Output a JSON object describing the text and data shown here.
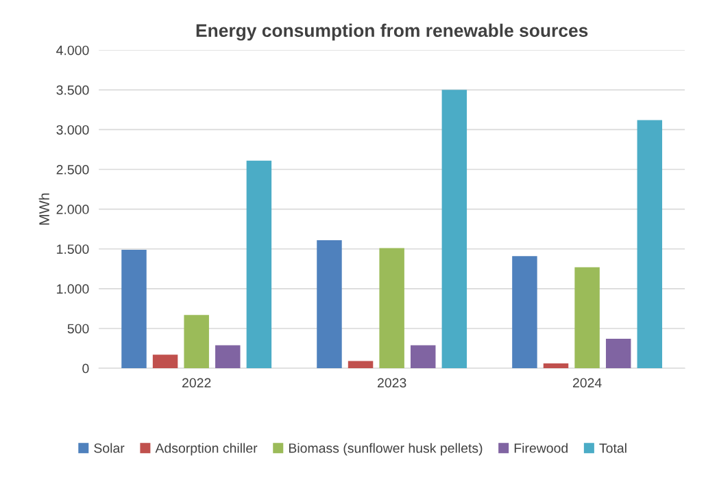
{
  "chart_data": {
    "type": "bar",
    "title": "Energy consumption from renewable sources",
    "ylabel": "MWh",
    "categories": [
      "2022",
      "2023",
      "2024"
    ],
    "series": [
      {
        "name": "Solar",
        "color": "#4f81bd",
        "values": [
          1490,
          1610,
          1410
        ]
      },
      {
        "name": "Adsorption chiller",
        "color": "#c0504d",
        "values": [
          170,
          90,
          60
        ]
      },
      {
        "name": "Biomass (sunflower husk pellets)",
        "color": "#9bbb59",
        "values": [
          670,
          1510,
          1270
        ]
      },
      {
        "name": "Firewood",
        "color": "#8064a2",
        "values": [
          290,
          290,
          370
        ]
      },
      {
        "name": "Total",
        "color": "#4bacc6",
        "values": [
          2610,
          3500,
          3120
        ]
      }
    ],
    "ylim": [
      0,
      4000
    ],
    "yticks": [
      {
        "value": 0,
        "label": "0"
      },
      {
        "value": 500,
        "label": "500"
      },
      {
        "value": 1000,
        "label": "1.000"
      },
      {
        "value": 1500,
        "label": "1.500"
      },
      {
        "value": 2000,
        "label": "2.000"
      },
      {
        "value": 2500,
        "label": "2.500"
      },
      {
        "value": 3000,
        "label": "3.000"
      },
      {
        "value": 3500,
        "label": "3.500"
      },
      {
        "value": 4000,
        "label": "4.000"
      }
    ],
    "grid": "y",
    "legend": "bottom"
  }
}
